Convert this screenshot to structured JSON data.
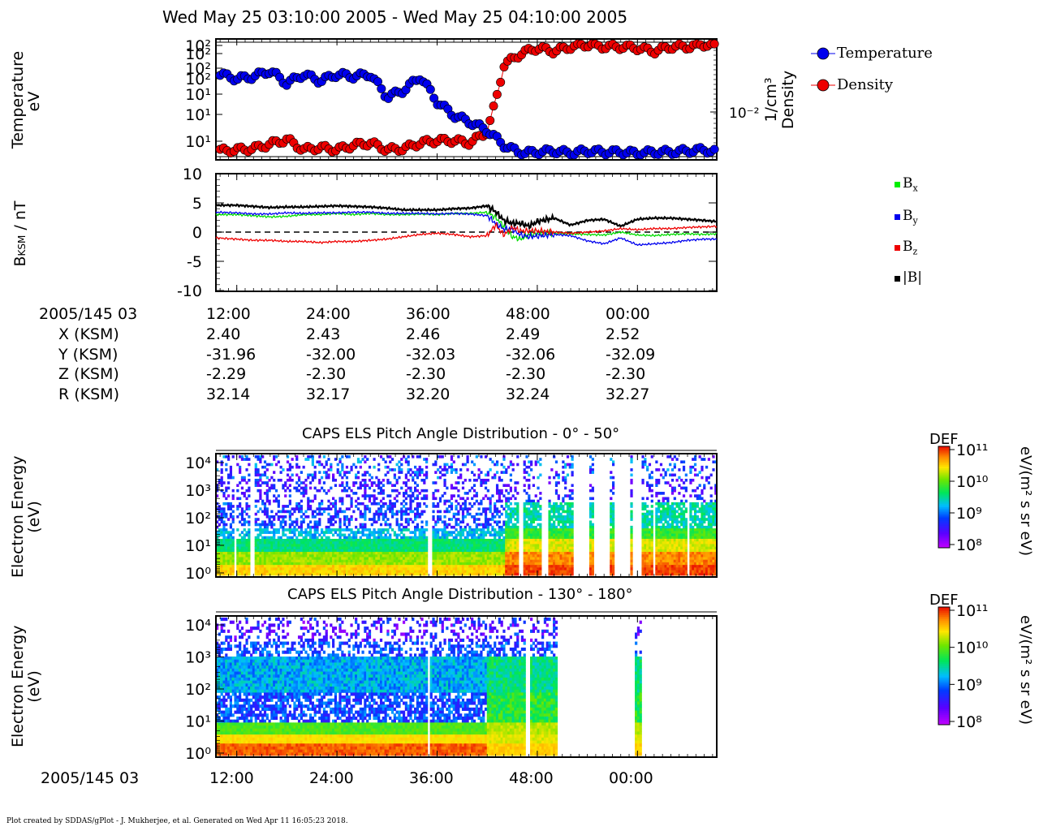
{
  "header": {
    "title": "Wed May 25 03:10:00 2005 - Wed May 25 04:10:00 2005"
  },
  "panel1": {
    "ylabel_left_1": "Temperature",
    "ylabel_left_2": "eV",
    "ylabel_right_1": "Density",
    "ylabel_right_2": "1/cm³",
    "left_ticks": [
      "10²",
      "10²",
      "10²",
      "10²",
      "10¹",
      "10¹",
      "10¹"
    ],
    "right_ticks": [
      "10⁻²"
    ],
    "legend": [
      {
        "label": "Temperature",
        "color": "#0000ee"
      },
      {
        "label": "Density",
        "color": "#ee0000"
      }
    ]
  },
  "panel2": {
    "ylabel": "B",
    "ylabel_sub": "KSM",
    "ylabel_unit": " / nT",
    "ticks": [
      "10",
      "5",
      "0",
      "-5",
      "-10"
    ],
    "legend": [
      {
        "label": "B",
        "sub": "x",
        "color": "#00ee00"
      },
      {
        "label": "B",
        "sub": "y",
        "color": "#0000ee"
      },
      {
        "label": "B",
        "sub": "z",
        "color": "#ee0000"
      },
      {
        "label": "|B|",
        "sub": "",
        "color": "#000000"
      }
    ]
  },
  "ephemeris": {
    "row_labels": [
      "2005/145 03",
      "X (KSM)",
      "Y (KSM)",
      "Z (KSM)",
      "R (KSM)"
    ],
    "columns": [
      [
        "12:00",
        "2.40",
        "-31.96",
        "-2.29",
        "32.14"
      ],
      [
        "24:00",
        "2.43",
        "-32.00",
        "-2.30",
        "32.17"
      ],
      [
        "36:00",
        "2.46",
        "-32.03",
        "-2.30",
        "32.20"
      ],
      [
        "48:00",
        "2.49",
        "-32.06",
        "-2.30",
        "32.24"
      ],
      [
        "00:00",
        "2.52",
        "-32.09",
        "-2.30",
        "32.27"
      ]
    ]
  },
  "spectro1": {
    "title": "CAPS ELS Pitch Angle Distribution - 0° - 50°",
    "ylabel_1": "Electron Energy",
    "ylabel_2": "(eV)",
    "yticks": [
      "10⁴",
      "10³",
      "10²",
      "10¹",
      "10⁰"
    ]
  },
  "spectro2": {
    "title": "CAPS ELS Pitch Angle Distribution - 130° - 180°",
    "ylabel_1": "Electron Energy",
    "ylabel_2": "(eV)",
    "yticks": [
      "10⁴",
      "10³",
      "10²",
      "10¹",
      "10⁰"
    ]
  },
  "colorbar": {
    "title": "DEF",
    "unit": "eV/(m² s sr eV)",
    "ticks": [
      "10¹¹",
      "10¹⁰",
      "10⁹",
      "10⁸"
    ]
  },
  "bottom_axis": {
    "date_label": "2005/145 03",
    "ticks": [
      "12:00",
      "24:00",
      "36:00",
      "48:00",
      "00:00"
    ]
  },
  "footer": "Plot created by SDDAS/gPlot - J. Mukherjee, et al.  Generated on Wed Apr 11 16:05:23 2018.",
  "chart_data": [
    {
      "type": "scatter",
      "title": "Wed May 25 03:10:00 2005 - Wed May 25 04:10:00 2005",
      "xlabel": "",
      "ylabel": "Temperature eV",
      "y2label": "Density 1/cm³",
      "x_ticks": [
        "12:00",
        "24:00",
        "36:00",
        "48:00",
        "00:00"
      ],
      "x_unit": "minutes after 03:00 (decoded time of day)",
      "x_range": [
        9.5,
        69.5
      ],
      "series": [
        {
          "name": "Temperature",
          "color": "#0000ee",
          "x": [
            10,
            12,
            14,
            16,
            18,
            20,
            22,
            24,
            26,
            28,
            30,
            32,
            34,
            36,
            38,
            40,
            42,
            44,
            46,
            48,
            50,
            52,
            54,
            56,
            58,
            60,
            62,
            64,
            66,
            68,
            69.5
          ],
          "values": [
            0.72,
            0.68,
            0.7,
            0.75,
            0.64,
            0.72,
            0.66,
            0.72,
            0.7,
            0.72,
            0.52,
            0.58,
            0.7,
            0.48,
            0.36,
            0.3,
            0.23,
            0.1,
            0.03,
            0.04,
            0.05,
            0.03,
            0.05,
            0.04,
            0.04,
            0.03,
            0.04,
            0.04,
            0.05,
            0.06,
            0.04
          ],
          "values_note": "relative height 0-1 (axis ticks unreadable)"
        },
        {
          "name": "Density",
          "color": "#ee0000",
          "x": [
            10,
            12,
            14,
            16,
            18,
            20,
            22,
            24,
            26,
            28,
            30,
            32,
            34,
            36,
            38,
            40,
            42,
            43,
            44,
            46,
            48,
            50,
            52,
            54,
            56,
            58,
            60,
            62,
            64,
            66,
            68,
            69.5
          ],
          "values": [
            0.05,
            0.06,
            0.07,
            0.11,
            0.15,
            0.06,
            0.08,
            0.06,
            0.1,
            0.12,
            0.06,
            0.07,
            0.12,
            0.14,
            0.14,
            0.12,
            0.22,
            0.48,
            0.8,
            0.9,
            0.95,
            0.92,
            0.96,
            0.98,
            0.96,
            0.96,
            0.95,
            0.92,
            0.96,
            0.96,
            0.98,
            0.98
          ],
          "values_note": "relative height 0-1 (axis ticks unreadable)"
        }
      ]
    },
    {
      "type": "line",
      "ylabel": "BKSM / nT",
      "ylim": [
        -10,
        10
      ],
      "x_ticks": [
        "12:00",
        "24:00",
        "36:00",
        "48:00",
        "00:00"
      ],
      "x_unit": "minutes after 03:00 (decoded time of day)",
      "x_range": [
        9.5,
        69.5
      ],
      "x": [
        9.5,
        12,
        14,
        16,
        18,
        20,
        22,
        24,
        26,
        28,
        30,
        32,
        34,
        36,
        38,
        40,
        42,
        43,
        44,
        45,
        46,
        47,
        48,
        50,
        52,
        54,
        56,
        58,
        60,
        62,
        64,
        66,
        68,
        69.5
      ],
      "series": [
        {
          "name": "Bx",
          "color": "#00dd00",
          "values": [
            3.0,
            3.0,
            2.8,
            2.6,
            2.7,
            3.0,
            3.0,
            3.2,
            3.0,
            3.2,
            3.0,
            3.0,
            3.1,
            3.0,
            3.2,
            3.2,
            3.4,
            2.5,
            1.0,
            -0.8,
            -1.2,
            -0.5,
            -0.3,
            -0.2,
            -0.3,
            -0.4,
            -0.5,
            0.0,
            -0.5,
            -0.6,
            -0.4,
            -0.3,
            -0.4,
            -0.3
          ]
        },
        {
          "name": "By",
          "color": "#0000ee",
          "values": [
            3.4,
            3.3,
            3.1,
            3.1,
            3.3,
            3.2,
            3.3,
            3.3,
            3.4,
            3.4,
            3.2,
            3.2,
            3.2,
            3.1,
            3.2,
            3.1,
            2.8,
            1.5,
            0.5,
            0.5,
            -0.5,
            -0.8,
            -0.7,
            -0.4,
            -0.6,
            -1.5,
            -2.0,
            -1.0,
            -2.2,
            -2.0,
            -1.8,
            -1.4,
            -1.2,
            -1.2
          ]
        },
        {
          "name": "Bz",
          "color": "#ee0000",
          "values": [
            -1.0,
            -1.2,
            -1.4,
            -1.4,
            -1.6,
            -1.6,
            -1.8,
            -1.6,
            -1.6,
            -1.4,
            -1.2,
            -0.8,
            -0.4,
            -0.2,
            -0.4,
            -0.8,
            -0.6,
            1.2,
            -0.5,
            0.8,
            0.2,
            0.2,
            0.2,
            0.0,
            -0.2,
            0.0,
            0.2,
            0.6,
            0.4,
            0.6,
            0.6,
            0.8,
            0.9,
            1.0
          ]
        },
        {
          "name": "|B|",
          "color": "#000000",
          "values": [
            4.6,
            4.6,
            4.4,
            4.2,
            4.3,
            4.3,
            4.4,
            4.5,
            4.4,
            4.3,
            4.1,
            3.8,
            3.8,
            3.8,
            4.0,
            4.1,
            4.5,
            3.5,
            2.0,
            1.5,
            1.5,
            1.0,
            1.8,
            2.4,
            1.2,
            2.0,
            2.2,
            1.0,
            2.2,
            2.4,
            2.4,
            2.2,
            2.0,
            1.8
          ],
          "dashed_zero": true
        }
      ]
    },
    {
      "type": "heatmap",
      "title": "CAPS ELS Pitch Angle Distribution - 0° - 50°",
      "ylabel": "Electron Energy (eV)",
      "y_scale": "log",
      "ylim": [
        1,
        20000
      ],
      "colorbar": {
        "label": "DEF eV/(m² s sr eV)",
        "range": [
          100000000.0,
          100000000000.0
        ]
      },
      "x_ticks": [
        "12:00",
        "24:00",
        "36:00",
        "48:00",
        "00:00"
      ],
      "x_unit": "minutes after 03:00 (decoded time of day)",
      "x_range": [
        9.5,
        69.5
      ],
      "data_gaps": [
        [
          11.7,
          12.0
        ],
        [
          13.6,
          14.0
        ],
        [
          35.0,
          35.3
        ],
        [
          45.8,
          46.4
        ],
        [
          48.5,
          49.3
        ],
        [
          52.2,
          54.3
        ],
        [
          54.7,
          56.6
        ],
        [
          57.2,
          59.0
        ],
        [
          59.5,
          60.4
        ],
        [
          62.0,
          62.1
        ],
        [
          66.0,
          66.2
        ]
      ],
      "energy_bands_eV": [
        1,
        3,
        10,
        30,
        100,
        300,
        1000,
        3000,
        10000
      ],
      "columns_note": "bands: low-energy flux high (~1e10.5), mid-energy ~1e9, high-energy sparse speckle ~1e8.3"
    },
    {
      "type": "heatmap",
      "title": "CAPS ELS Pitch Angle Distribution - 130° - 180°",
      "ylabel": "Electron Energy (eV)",
      "y_scale": "log",
      "ylim": [
        1,
        20000
      ],
      "colorbar": {
        "label": "DEF eV/(m² s sr eV)",
        "range": [
          100000000.0,
          100000000000.0
        ]
      },
      "x_ticks": [
        "12:00",
        "24:00",
        "36:00",
        "48:00",
        "00:00"
      ],
      "x_unit": "minutes after 03:00 (decoded time of day)",
      "x_range": [
        9.5,
        69.5
      ],
      "data_gaps": [
        [
          35.0,
          35.2
        ],
        [
          46.5,
          47.0
        ],
        [
          50.5,
          59.8
        ],
        [
          60.5,
          69.5
        ]
      ],
      "energy_bands_eV": [
        1,
        3,
        10,
        30,
        100,
        300,
        1000,
        3000,
        10000
      ]
    }
  ]
}
